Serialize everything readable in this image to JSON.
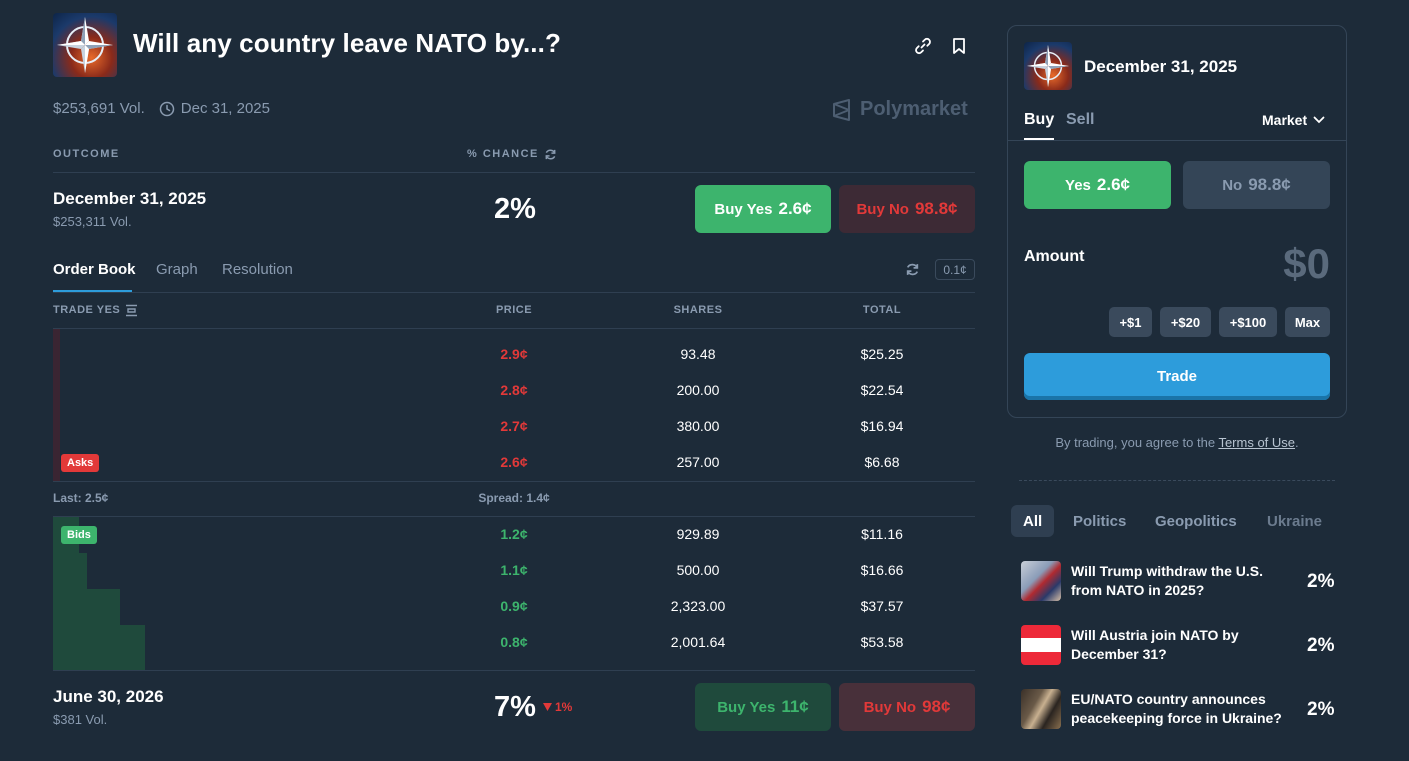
{
  "header": {
    "title": "Will any country leave NATO by...?",
    "volume": "$253,691 Vol.",
    "end_date": "Dec 31, 2025",
    "brand": "Polymarket"
  },
  "table_head": {
    "outcome": "OUTCOME",
    "chance": "% CHANCE"
  },
  "outcomes": [
    {
      "title": "December 31, 2025",
      "volume": "$253,311 Vol.",
      "chance": "2%",
      "buy_yes": "Buy Yes",
      "yes_price": "2.6¢",
      "buy_no": "Buy No",
      "no_price": "98.8¢"
    },
    {
      "title": "June 30, 2026",
      "volume": "$381 Vol.",
      "chance": "7%",
      "change": "1%",
      "buy_yes": "Buy Yes",
      "yes_price": "11¢",
      "buy_no": "Buy No",
      "no_price": "98¢"
    }
  ],
  "tabs": [
    "Order Book",
    "Graph",
    "Resolution"
  ],
  "tick_size": "0.1¢",
  "order_book": {
    "headers": {
      "trade": "TRADE YES",
      "price": "PRICE",
      "shares": "SHARES",
      "total": "TOTAL"
    },
    "asks_label": "Asks",
    "bids_label": "Bids",
    "asks": [
      {
        "price": "2.9¢",
        "shares": "93.48",
        "total": "$25.25"
      },
      {
        "price": "2.8¢",
        "shares": "200.00",
        "total": "$22.54"
      },
      {
        "price": "2.7¢",
        "shares": "380.00",
        "total": "$16.94"
      },
      {
        "price": "2.6¢",
        "shares": "257.00",
        "total": "$6.68"
      }
    ],
    "last": "Last: 2.5¢",
    "spread": "Spread: 1.4¢",
    "bids": [
      {
        "price": "1.2¢",
        "shares": "929.89",
        "total": "$11.16"
      },
      {
        "price": "1.1¢",
        "shares": "500.00",
        "total": "$16.66"
      },
      {
        "price": "0.9¢",
        "shares": "2,323.00",
        "total": "$37.57"
      },
      {
        "price": "0.8¢",
        "shares": "2,001.64",
        "total": "$53.58"
      }
    ]
  },
  "panel": {
    "title": "December 31, 2025",
    "buy_tab": "Buy",
    "sell_tab": "Sell",
    "order_type": "Market",
    "yes_label": "Yes",
    "yes_price": "2.6¢",
    "no_label": "No",
    "no_price": "98.8¢",
    "amount_label": "Amount",
    "amount_value": "$0",
    "chips": [
      "+$1",
      "+$20",
      "+$100",
      "Max"
    ],
    "trade_label": "Trade",
    "terms_prefix": "By trading, you agree to the ",
    "terms_link": "Terms of Use",
    "terms_suffix": "."
  },
  "categories": [
    "All",
    "Politics",
    "Geopolitics",
    "Ukraine"
  ],
  "related": [
    {
      "title": "Will Trump withdraw the U.S. from NATO in 2025?",
      "chance": "2%"
    },
    {
      "title": "Will Austria join NATO by December 31?",
      "chance": "2%"
    },
    {
      "title": "EU/NATO country announces peacekeeping force in Ukraine?",
      "chance": "2%"
    }
  ],
  "colors": {
    "accent": "#2d9cdb",
    "yes": "#3db46d",
    "no": "#e23939",
    "background": "#1d2b39"
  }
}
